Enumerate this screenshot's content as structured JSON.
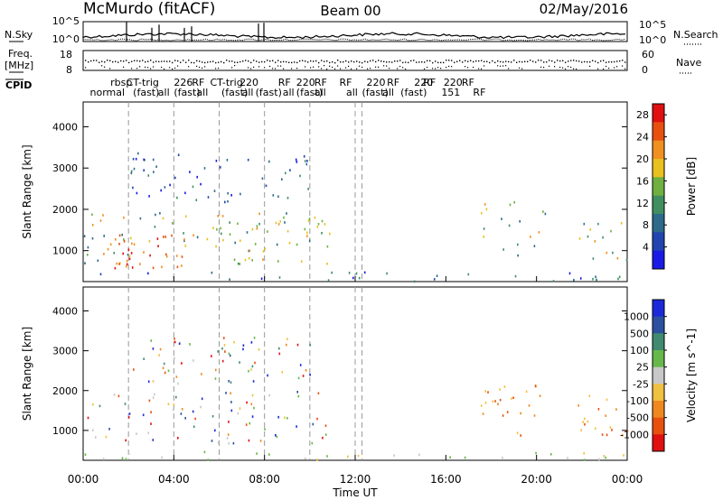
{
  "header": {
    "station": "McMurdo (fitACF)",
    "beam": "Beam 00",
    "date": "02/May/2016"
  },
  "strips": {
    "nsky_label": "N.Sky",
    "nsky_ticks": [
      "10^5",
      "10^0"
    ],
    "nsearch_label": "N.Search",
    "nsearch_ticks": [
      "10^5",
      "10^0"
    ],
    "freq_label": "Freq.",
    "freq_unit": "[MHz]",
    "freq_ticks": [
      "18",
      "8"
    ],
    "nave_label": "Nave",
    "nave_ticks": [
      "60",
      "0"
    ],
    "cpid_label": "CPID"
  },
  "cpid_labels": [
    {
      "t": 0.3,
      "row": 1,
      "text": "normal"
    },
    {
      "t": 1.2,
      "row": 0,
      "text": "rbsp"
    },
    {
      "t": 1.9,
      "row": 0,
      "text": "CT-trig"
    },
    {
      "t": 2.2,
      "row": 1,
      "text": "(fast)"
    },
    {
      "t": 3.3,
      "row": 1,
      "text": "all"
    },
    {
      "t": 4.0,
      "row": 0,
      "text": "226"
    },
    {
      "t": 4.0,
      "row": 1,
      "text": "(fast)"
    },
    {
      "t": 4.8,
      "row": 0,
      "text": "RF"
    },
    {
      "t": 5.0,
      "row": 1,
      "text": "all"
    },
    {
      "t": 5.6,
      "row": 0,
      "text": "CT-trig"
    },
    {
      "t": 6.1,
      "row": 1,
      "text": "(fast)"
    },
    {
      "t": 6.9,
      "row": 0,
      "text": "220"
    },
    {
      "t": 7.0,
      "row": 1,
      "text": "all"
    },
    {
      "t": 7.6,
      "row": 1,
      "text": "(fast)"
    },
    {
      "t": 8.6,
      "row": 0,
      "text": "RF"
    },
    {
      "t": 8.8,
      "row": 1,
      "text": "all"
    },
    {
      "t": 9.4,
      "row": 0,
      "text": "220"
    },
    {
      "t": 9.4,
      "row": 1,
      "text": "(fast)"
    },
    {
      "t": 10.2,
      "row": 0,
      "text": "RF"
    },
    {
      "t": 10.2,
      "row": 1,
      "text": "all"
    },
    {
      "t": 11.3,
      "row": 0,
      "text": "RF"
    },
    {
      "t": 11.6,
      "row": 1,
      "text": "all"
    },
    {
      "t": 12.3,
      "row": 1,
      "text": "(fast)"
    },
    {
      "t": 12.5,
      "row": 0,
      "text": "220"
    },
    {
      "t": 13.2,
      "row": 1,
      "text": "all"
    },
    {
      "t": 13.4,
      "row": 0,
      "text": "RF"
    },
    {
      "t": 14.0,
      "row": 1,
      "text": "(fast)"
    },
    {
      "t": 14.6,
      "row": 0,
      "text": "220"
    },
    {
      "t": 15.0,
      "row": 0,
      "text": "RF"
    },
    {
      "t": 15.9,
      "row": 0,
      "text": "220"
    },
    {
      "t": 16.7,
      "row": 0,
      "text": "RF"
    },
    {
      "t": 15.8,
      "row": 1,
      "text": "151"
    },
    {
      "t": 17.2,
      "row": 1,
      "text": "RF"
    }
  ],
  "chart_data": [
    {
      "type": "heatmap",
      "title": "Beam 00",
      "xlabel": "Time UT",
      "ylabel": "Slant Range [km]",
      "xlim": [
        0,
        24
      ],
      "ylim": [
        250,
        4600
      ],
      "x_ticks": [
        "00:00",
        "04:00",
        "08:00",
        "12:00",
        "16:00",
        "20:00",
        "00:00"
      ],
      "y_ticks": [
        1000,
        2000,
        3000,
        4000
      ],
      "grid_hours": [
        2,
        4,
        6,
        8,
        10,
        12,
        12.3
      ],
      "colorbar": {
        "label": "Power [dB]",
        "ticks": [
          4,
          8,
          12,
          16,
          20,
          24,
          28
        ],
        "range": [
          0,
          30
        ],
        "colors": [
          "#1a1ae6",
          "#2244b0",
          "#2c6b8a",
          "#3f8f60",
          "#6fb040",
          "#e8c020",
          "#f09020",
          "#e85010",
          "#e01010"
        ]
      },
      "scatter_regions": [
        {
          "t": [
            0.0,
            10.9
          ],
          "r": [
            700,
            2000
          ],
          "level": "mid"
        },
        {
          "t": [
            1.0,
            4.5
          ],
          "r": [
            600,
            1400
          ],
          "level": "high"
        },
        {
          "t": [
            2.0,
            10.0
          ],
          "r": [
            2200,
            3400
          ],
          "level": "low"
        },
        {
          "t": [
            17.5,
            20.4
          ],
          "r": [
            900,
            2200
          ],
          "level": "mid"
        },
        {
          "t": [
            21.7,
            24.0
          ],
          "r": [
            800,
            1900
          ],
          "level": "mid"
        },
        {
          "t": [
            0.0,
            24.0
          ],
          "r": [
            280,
            500
          ],
          "level": "low"
        }
      ]
    },
    {
      "type": "heatmap",
      "title": "",
      "xlabel": "Time UT",
      "ylabel": "Slant Range [km]",
      "xlim": [
        0,
        24
      ],
      "ylim": [
        250,
        4600
      ],
      "x_ticks": [
        "00:00",
        "04:00",
        "08:00",
        "12:00",
        "16:00",
        "20:00",
        "00:00"
      ],
      "y_ticks": [
        1000,
        2000,
        3000,
        4000
      ],
      "grid_hours": [
        2,
        4,
        6,
        8,
        10,
        12,
        12.3
      ],
      "colorbar": {
        "label": "Velocity [m s^-1]",
        "ticks": [
          "1000",
          "500",
          "100",
          "25",
          "-25",
          "-100",
          "-500",
          "-1000"
        ],
        "colors": [
          "#1a2ad8",
          "#2c50a0",
          "#3f8a70",
          "#66b84a",
          "#c8c8c8",
          "#f0c040",
          "#f08820",
          "#e85010",
          "#e01010"
        ]
      },
      "scatter_regions": [
        {
          "t": [
            0.0,
            10.9
          ],
          "r": [
            700,
            2000
          ],
          "level": "mixed"
        },
        {
          "t": [
            2.0,
            10.0
          ],
          "r": [
            2200,
            3400
          ],
          "level": "mixed"
        },
        {
          "t": [
            17.5,
            20.4
          ],
          "r": [
            900,
            2200
          ],
          "level": "negative"
        },
        {
          "t": [
            21.7,
            24.0
          ],
          "r": [
            800,
            1900
          ],
          "level": "negative"
        },
        {
          "t": [
            0.0,
            24.0
          ],
          "r": [
            280,
            500
          ],
          "level": "ground"
        }
      ]
    }
  ]
}
